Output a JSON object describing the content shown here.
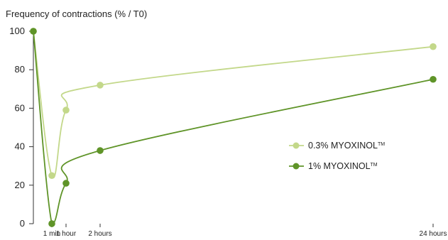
{
  "chart_data": {
    "type": "line",
    "ylabel": "Frequency of contractions (% / T0)",
    "xlabel": "",
    "ylim": [
      0,
      100
    ],
    "yticks": [
      0,
      20,
      40,
      60,
      80,
      100
    ],
    "x_tick_labels": [
      "1 min",
      "1 hour",
      "2 hours",
      "24 hours"
    ],
    "grid": false,
    "legend_position": "right",
    "series": [
      {
        "name": "0.3% MYOXINOL",
        "name_suffix": "TM",
        "color": "#c3d88a",
        "x": [
          "T0",
          "1 min",
          "1 hour",
          "2 hours",
          "24 hours"
        ],
        "values": [
          100,
          25,
          59,
          72,
          92
        ]
      },
      {
        "name": "1% MYOXINOL",
        "name_suffix": "TM",
        "color": "#5f9428",
        "x": [
          "T0",
          "1 min",
          "1 hour",
          "2 hours",
          "24 hours"
        ],
        "values": [
          100,
          0,
          21,
          38,
          75
        ]
      }
    ]
  }
}
